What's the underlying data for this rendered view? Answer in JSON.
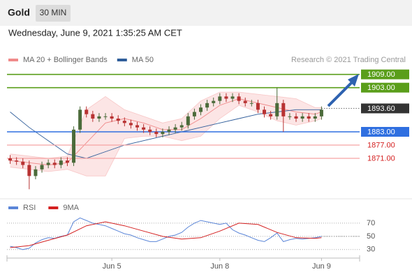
{
  "header": {
    "title": "Gold",
    "timeframe": "30 MIN"
  },
  "chart_data": [
    {
      "type": "candlestick",
      "date": "Wednesday, June 9, 2021 1:35:25 AM CET",
      "credit": "Research © 2021 Trading Central",
      "xlim": [
        -0.5,
        55
      ],
      "ylim": [
        1853,
        1913
      ],
      "up_color": "#4b6b3a",
      "down_color": "#b83232",
      "open": [
        1871,
        1870,
        1869.5,
        1868,
        1863,
        1866,
        1868,
        1869,
        1868,
        1870,
        1869,
        1884,
        1893,
        1891,
        1889,
        1890,
        1890,
        1889,
        1888,
        1887,
        1886,
        1885,
        1884,
        1883,
        1882,
        1883,
        1884,
        1885,
        1886,
        1890,
        1892,
        1894,
        1896,
        1897,
        1899,
        1898,
        1899,
        1897,
        1896,
        1896,
        1893,
        1891,
        1890,
        1896,
        1890,
        1890,
        1889,
        1890,
        1889,
        1890
      ],
      "high": [
        1872.5,
        1871.5,
        1871,
        1870,
        1867.5,
        1869.5,
        1870.5,
        1870.5,
        1871.5,
        1871.5,
        1885.5,
        1894.5,
        1894.5,
        1892.5,
        1891.5,
        1891.5,
        1891.5,
        1890.5,
        1889.5,
        1888.5,
        1887.5,
        1886.5,
        1885.5,
        1884.5,
        1884.5,
        1885.5,
        1886.5,
        1887.5,
        1891.5,
        1893.5,
        1895.5,
        1897.5,
        1898.5,
        1900.5,
        1900.5,
        1900.5,
        1900.5,
        1898.5,
        1897.5,
        1897.5,
        1894.5,
        1892.5,
        1903,
        1897.5,
        1891.5,
        1891.5,
        1891.5,
        1891.5,
        1891.5,
        1894.5
      ],
      "low": [
        1868.5,
        1868,
        1866.5,
        1857,
        1861.5,
        1864.5,
        1866.5,
        1866.5,
        1866.5,
        1867.5,
        1867.5,
        1882.5,
        1889.5,
        1887.5,
        1887.5,
        1888.5,
        1887.5,
        1886.5,
        1885.5,
        1884.5,
        1883.5,
        1882.5,
        1881.5,
        1880.5,
        1880.5,
        1881.5,
        1882.5,
        1883.5,
        1884.5,
        1888.5,
        1890.5,
        1892.5,
        1894.5,
        1895.5,
        1896.5,
        1896.5,
        1895.5,
        1894.5,
        1894.5,
        1891.5,
        1889.5,
        1888.5,
        1888.5,
        1883,
        1888.5,
        1887.5,
        1887.5,
        1887.5,
        1887.5,
        1888.5
      ],
      "close": [
        1870,
        1869.5,
        1868,
        1863,
        1866,
        1868,
        1869,
        1868,
        1870,
        1869,
        1884,
        1893,
        1891,
        1889,
        1890,
        1890,
        1889,
        1888,
        1887,
        1886,
        1885,
        1884,
        1883,
        1882,
        1883,
        1884,
        1885,
        1886,
        1890,
        1892,
        1894,
        1896,
        1897,
        1899,
        1898,
        1899,
        1897,
        1896,
        1896,
        1893,
        1891,
        1890,
        1896,
        1890,
        1890,
        1889,
        1890,
        1889,
        1890,
        1893
      ],
      "series": [
        {
          "name": "MA 20 + Bollinger Bands",
          "color": "#f08a8a",
          "x": [
            0,
            3,
            6,
            9,
            12,
            15,
            18,
            21,
            24,
            27,
            30,
            33,
            36,
            39,
            42,
            45,
            48,
            49
          ],
          "values": [
            1870,
            1869,
            1868,
            1869,
            1878,
            1887,
            1889,
            1887,
            1884,
            1884,
            1889,
            1895,
            1898,
            1896,
            1894,
            1892,
            1891,
            1892
          ],
          "upper": [
            1873,
            1872,
            1871,
            1872,
            1893,
            1899,
            1893,
            1890,
            1887,
            1889,
            1897,
            1901,
            1901,
            1900,
            1899,
            1898,
            1894,
            1894
          ],
          "lower": [
            1867,
            1866,
            1865,
            1866,
            1863,
            1863,
            1880,
            1881,
            1881,
            1879,
            1881,
            1889,
            1895,
            1892,
            1888,
            1886,
            1888,
            1889
          ]
        },
        {
          "name": "MA 50",
          "color": "#2f5d9a",
          "x": [
            0,
            3,
            6,
            9,
            12,
            15,
            18,
            21,
            24,
            27,
            30,
            33,
            36,
            39,
            42,
            45,
            48,
            49
          ],
          "values": [
            1892,
            1885,
            1879,
            1873,
            1871,
            1874,
            1877,
            1879,
            1881,
            1883,
            1885,
            1887,
            1889,
            1891,
            1892,
            1893,
            1893,
            1893
          ]
        }
      ],
      "levels": {
        "values": [
          1909,
          1903,
          1893.6,
          1883,
          1877,
          1871
        ],
        "value_labels": [
          "1909.00",
          "1903.00",
          "1893.60",
          "1883.00",
          "1877.00",
          "1871.00"
        ],
        "colors": [
          "#5a9e1a",
          "#5a9e1a",
          "#333333",
          "#2f6fe0",
          "#f5a5a5",
          "#f5a5a5"
        ],
        "boxed": [
          true,
          true,
          true,
          true,
          false,
          false
        ]
      }
    },
    {
      "type": "line",
      "xlim": [
        -0.5,
        55
      ],
      "ylim": [
        15,
        90
      ],
      "yticks": [
        70,
        50,
        30
      ],
      "xticks": [
        {
          "value": 16,
          "label": "Jun 5"
        },
        {
          "value": 33,
          "label": "Jun 8"
        },
        {
          "value": 49,
          "label": "Jun 9"
        }
      ],
      "series": [
        {
          "name": "RSI",
          "color": "#5b86d8",
          "values": [
            35,
            33,
            30,
            32,
            40,
            45,
            48,
            47,
            50,
            52,
            72,
            78,
            74,
            70,
            68,
            66,
            62,
            58,
            54,
            52,
            48,
            45,
            42,
            42,
            46,
            50,
            52,
            56,
            64,
            70,
            74,
            72,
            70,
            68,
            70,
            60,
            55,
            52,
            48,
            44,
            42,
            48,
            55,
            42,
            45,
            47,
            46,
            47,
            48,
            50
          ]
        },
        {
          "name": "9MA",
          "color": "#d42020",
          "x": [
            0,
            3,
            6,
            9,
            12,
            15,
            18,
            21,
            24,
            27,
            30,
            33,
            36,
            39,
            42,
            45,
            48,
            49
          ],
          "values": [
            33,
            36,
            44,
            52,
            66,
            72,
            66,
            58,
            50,
            46,
            48,
            58,
            70,
            68,
            56,
            48,
            47,
            48
          ]
        }
      ]
    }
  ]
}
